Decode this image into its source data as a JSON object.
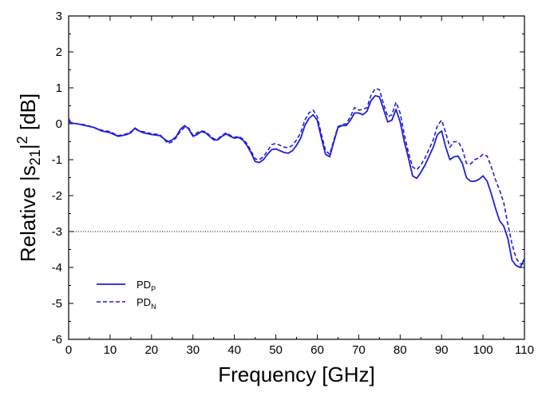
{
  "chart_data": {
    "type": "line",
    "xlabel": "Frequency  [GHz]",
    "ylabel": {
      "prefix": "Relative |s",
      "subscript": "21",
      "mid": "|",
      "superscript": "2",
      "suffix": "  [dB]"
    },
    "xlim": [
      0,
      110
    ],
    "ylim": [
      -6,
      3
    ],
    "x_ticks": [
      0,
      10,
      20,
      30,
      40,
      50,
      60,
      70,
      80,
      90,
      100,
      110
    ],
    "y_ticks": [
      3,
      2,
      1,
      0,
      -1,
      -2,
      -3,
      -4,
      -5,
      -6
    ],
    "grid": false,
    "legend_position": "bottom-left",
    "reference_line": {
      "y": -3,
      "style": "dotted"
    },
    "series": [
      {
        "name": "PD",
        "name_subscript": "P",
        "color": "#1f1fd6",
        "dash": "solid",
        "points": [
          [
            0,
            0.15
          ],
          [
            0.5,
            0.02
          ],
          [
            2,
            0.0
          ],
          [
            4,
            -0.05
          ],
          [
            6,
            -0.1
          ],
          [
            8,
            -0.2
          ],
          [
            10,
            -0.25
          ],
          [
            11,
            -0.3
          ],
          [
            12,
            -0.35
          ],
          [
            14,
            -0.3
          ],
          [
            15,
            -0.25
          ],
          [
            16,
            -0.12
          ],
          [
            17,
            -0.2
          ],
          [
            18,
            -0.25
          ],
          [
            20,
            -0.3
          ],
          [
            22,
            -0.33
          ],
          [
            24,
            -0.5
          ],
          [
            25,
            -0.45
          ],
          [
            26,
            -0.35
          ],
          [
            27,
            -0.15
          ],
          [
            28,
            -0.05
          ],
          [
            29,
            -0.15
          ],
          [
            30,
            -0.35
          ],
          [
            31,
            -0.3
          ],
          [
            32,
            -0.22
          ],
          [
            33,
            -0.25
          ],
          [
            34,
            -0.35
          ],
          [
            35,
            -0.45
          ],
          [
            36,
            -0.45
          ],
          [
            37,
            -0.35
          ],
          [
            38,
            -0.28
          ],
          [
            39,
            -0.35
          ],
          [
            40,
            -0.4
          ],
          [
            41,
            -0.38
          ],
          [
            42,
            -0.45
          ],
          [
            43,
            -0.6
          ],
          [
            44,
            -0.8
          ],
          [
            45,
            -1.05
          ],
          [
            46,
            -1.08
          ],
          [
            47,
            -1.0
          ],
          [
            48,
            -0.85
          ],
          [
            49,
            -0.72
          ],
          [
            50,
            -0.7
          ],
          [
            51,
            -0.75
          ],
          [
            52,
            -0.8
          ],
          [
            53,
            -0.82
          ],
          [
            54,
            -0.75
          ],
          [
            55,
            -0.6
          ],
          [
            56,
            -0.4
          ],
          [
            57,
            -0.05
          ],
          [
            58,
            0.15
          ],
          [
            59,
            0.25
          ],
          [
            60,
            0.1
          ],
          [
            61,
            -0.4
          ],
          [
            62,
            -0.85
          ],
          [
            63,
            -0.92
          ],
          [
            64,
            -0.5
          ],
          [
            65,
            -0.1
          ],
          [
            66,
            -0.05
          ],
          [
            67,
            -0.05
          ],
          [
            68,
            0.1
          ],
          [
            69,
            0.3
          ],
          [
            70,
            0.3
          ],
          [
            71,
            0.25
          ],
          [
            72,
            0.35
          ],
          [
            73,
            0.65
          ],
          [
            74,
            0.78
          ],
          [
            75,
            0.75
          ],
          [
            76,
            0.4
          ],
          [
            77,
            0.05
          ],
          [
            78,
            0.1
          ],
          [
            79,
            0.4
          ],
          [
            80,
            0.05
          ],
          [
            81,
            -0.5
          ],
          [
            82,
            -0.95
          ],
          [
            83,
            -1.45
          ],
          [
            84,
            -1.52
          ],
          [
            85,
            -1.35
          ],
          [
            86,
            -1.15
          ],
          [
            87,
            -0.9
          ],
          [
            88,
            -0.65
          ],
          [
            89,
            -0.3
          ],
          [
            90,
            -0.2
          ],
          [
            91,
            -0.65
          ],
          [
            92,
            -1.0
          ],
          [
            93,
            -0.92
          ],
          [
            94,
            -0.9
          ],
          [
            95,
            -1.1
          ],
          [
            96,
            -1.5
          ],
          [
            97,
            -1.6
          ],
          [
            98,
            -1.6
          ],
          [
            99,
            -1.55
          ],
          [
            100,
            -1.45
          ],
          [
            101,
            -1.6
          ],
          [
            102,
            -1.95
          ],
          [
            103,
            -2.35
          ],
          [
            104,
            -2.7
          ],
          [
            105,
            -2.85
          ],
          [
            106,
            -3.2
          ],
          [
            107,
            -3.8
          ],
          [
            108,
            -3.95
          ],
          [
            109,
            -4.0
          ],
          [
            110,
            -3.75
          ]
        ]
      },
      {
        "name": "PD",
        "name_subscript": "N",
        "color": "#1f1fd6",
        "dash": "dashed",
        "points": [
          [
            0,
            0.05
          ],
          [
            2,
            0.0
          ],
          [
            4,
            -0.03
          ],
          [
            6,
            -0.1
          ],
          [
            8,
            -0.18
          ],
          [
            10,
            -0.22
          ],
          [
            11,
            -0.28
          ],
          [
            12,
            -0.33
          ],
          [
            14,
            -0.28
          ],
          [
            15,
            -0.22
          ],
          [
            16,
            -0.15
          ],
          [
            17,
            -0.2
          ],
          [
            18,
            -0.22
          ],
          [
            20,
            -0.28
          ],
          [
            22,
            -0.3
          ],
          [
            24,
            -0.55
          ],
          [
            25,
            -0.5
          ],
          [
            26,
            -0.38
          ],
          [
            27,
            -0.2
          ],
          [
            28,
            -0.1
          ],
          [
            29,
            -0.12
          ],
          [
            30,
            -0.32
          ],
          [
            31,
            -0.25
          ],
          [
            32,
            -0.2
          ],
          [
            33,
            -0.22
          ],
          [
            34,
            -0.32
          ],
          [
            35,
            -0.42
          ],
          [
            36,
            -0.42
          ],
          [
            37,
            -0.33
          ],
          [
            38,
            -0.25
          ],
          [
            39,
            -0.32
          ],
          [
            40,
            -0.38
          ],
          [
            41,
            -0.35
          ],
          [
            42,
            -0.42
          ],
          [
            43,
            -0.55
          ],
          [
            44,
            -0.75
          ],
          [
            45,
            -0.98
          ],
          [
            46,
            -1.0
          ],
          [
            47,
            -0.92
          ],
          [
            48,
            -0.75
          ],
          [
            49,
            -0.58
          ],
          [
            50,
            -0.55
          ],
          [
            51,
            -0.6
          ],
          [
            52,
            -0.65
          ],
          [
            53,
            -0.67
          ],
          [
            54,
            -0.6
          ],
          [
            55,
            -0.45
          ],
          [
            56,
            -0.25
          ],
          [
            57,
            0.1
          ],
          [
            58,
            0.3
          ],
          [
            59,
            0.38
          ],
          [
            60,
            0.2
          ],
          [
            61,
            -0.3
          ],
          [
            62,
            -0.75
          ],
          [
            63,
            -0.85
          ],
          [
            64,
            -0.45
          ],
          [
            65,
            -0.08
          ],
          [
            66,
            -0.02
          ],
          [
            67,
            0.0
          ],
          [
            68,
            0.2
          ],
          [
            69,
            0.45
          ],
          [
            70,
            0.38
          ],
          [
            71,
            0.4
          ],
          [
            72,
            0.45
          ],
          [
            73,
            0.8
          ],
          [
            74,
            0.98
          ],
          [
            75,
            0.95
          ],
          [
            76,
            0.55
          ],
          [
            77,
            0.2
          ],
          [
            78,
            0.25
          ],
          [
            79,
            0.6
          ],
          [
            80,
            0.3
          ],
          [
            81,
            -0.3
          ],
          [
            82,
            -0.8
          ],
          [
            83,
            -1.2
          ],
          [
            84,
            -1.28
          ],
          [
            85,
            -1.15
          ],
          [
            86,
            -0.95
          ],
          [
            87,
            -0.7
          ],
          [
            88,
            -0.45
          ],
          [
            89,
            -0.05
          ],
          [
            90,
            0.1
          ],
          [
            91,
            -0.25
          ],
          [
            92,
            -0.65
          ],
          [
            93,
            -0.5
          ],
          [
            94,
            -0.5
          ],
          [
            95,
            -0.7
          ],
          [
            96,
            -1.1
          ],
          [
            97,
            -1.12
          ],
          [
            98,
            -1.0
          ],
          [
            99,
            -0.95
          ],
          [
            100,
            -0.85
          ],
          [
            101,
            -0.9
          ],
          [
            102,
            -1.2
          ],
          [
            103,
            -1.55
          ],
          [
            104,
            -1.85
          ],
          [
            105,
            -2.2
          ],
          [
            106,
            -2.8
          ],
          [
            107,
            -3.35
          ],
          [
            108,
            -3.75
          ],
          [
            109,
            -3.9
          ],
          [
            110,
            -3.9
          ]
        ]
      }
    ]
  }
}
